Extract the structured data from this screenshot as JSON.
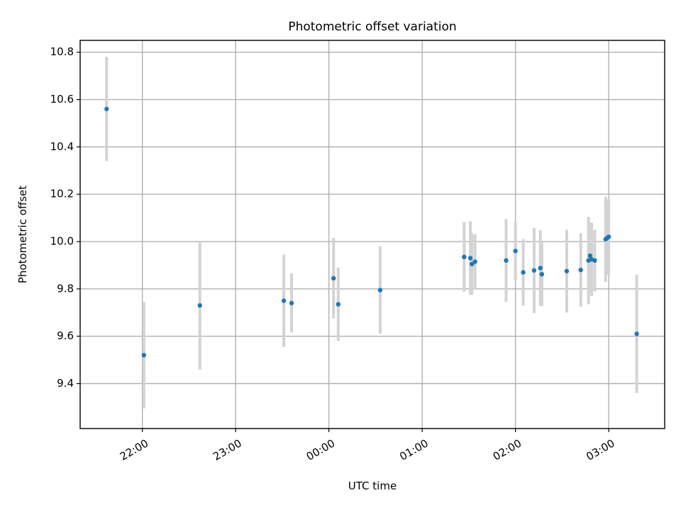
{
  "chart_data": {
    "type": "scatter",
    "title": "Photometric offset variation",
    "xlabel": "UTC time",
    "ylabel": "Photometric offset",
    "xlim": [
      "21:20",
      "03:36"
    ],
    "ylim": [
      9.21,
      10.85
    ],
    "x_ticks": [
      "22:00",
      "23:00",
      "00:00",
      "01:00",
      "02:00",
      "03:00"
    ],
    "y_ticks": [
      "9.4",
      "9.6",
      "9.8",
      "10.0",
      "10.2",
      "10.4",
      "10.6",
      "10.8"
    ],
    "grid": true,
    "colors": {
      "marker": "#1f77b4",
      "error_bar": "#d3d3d3",
      "grid": "#b0b0b0"
    },
    "points": [
      {
        "x": "21:37",
        "y": 10.56,
        "yerr": 0.22
      },
      {
        "x": "22:01",
        "y": 9.52,
        "yerr": 0.225
      },
      {
        "x": "22:37",
        "y": 9.73,
        "yerr": 0.27
      },
      {
        "x": "23:31",
        "y": 9.75,
        "yerr": 0.195
      },
      {
        "x": "23:36",
        "y": 9.74,
        "yerr": 0.125
      },
      {
        "x": "00:03",
        "y": 9.845,
        "yerr": 0.17
      },
      {
        "x": "00:06",
        "y": 9.735,
        "yerr": 0.155
      },
      {
        "x": "00:33",
        "y": 9.795,
        "yerr": 0.185
      },
      {
        "x": "01:27",
        "y": 9.935,
        "yerr": 0.147
      },
      {
        "x": "01:31",
        "y": 9.93,
        "yerr": 0.155
      },
      {
        "x": "01:32",
        "y": 9.905,
        "yerr": 0.13
      },
      {
        "x": "01:34",
        "y": 9.915,
        "yerr": 0.115
      },
      {
        "x": "01:54",
        "y": 9.92,
        "yerr": 0.175
      },
      {
        "x": "02:00",
        "y": 9.96,
        "yerr": 0.125
      },
      {
        "x": "02:05",
        "y": 9.87,
        "yerr": 0.14
      },
      {
        "x": "02:12",
        "y": 9.878,
        "yerr": 0.18
      },
      {
        "x": "02:16",
        "y": 9.888,
        "yerr": 0.16
      },
      {
        "x": "02:17",
        "y": 9.862,
        "yerr": 0.135
      },
      {
        "x": "02:33",
        "y": 9.875,
        "yerr": 0.175
      },
      {
        "x": "02:42",
        "y": 9.88,
        "yerr": 0.155
      },
      {
        "x": "02:47",
        "y": 9.92,
        "yerr": 0.185
      },
      {
        "x": "02:48",
        "y": 9.94,
        "yerr": 0.14
      },
      {
        "x": "02:49",
        "y": 9.925,
        "yerr": 0.155
      },
      {
        "x": "02:51",
        "y": 9.92,
        "yerr": 0.13
      },
      {
        "x": "02:58",
        "y": 10.01,
        "yerr": 0.18
      },
      {
        "x": "02:59",
        "y": 10.015,
        "yerr": 0.155
      },
      {
        "x": "03:00",
        "y": 10.02,
        "yerr": 0.16
      },
      {
        "x": "03:18",
        "y": 9.61,
        "yerr": 0.25
      }
    ]
  }
}
